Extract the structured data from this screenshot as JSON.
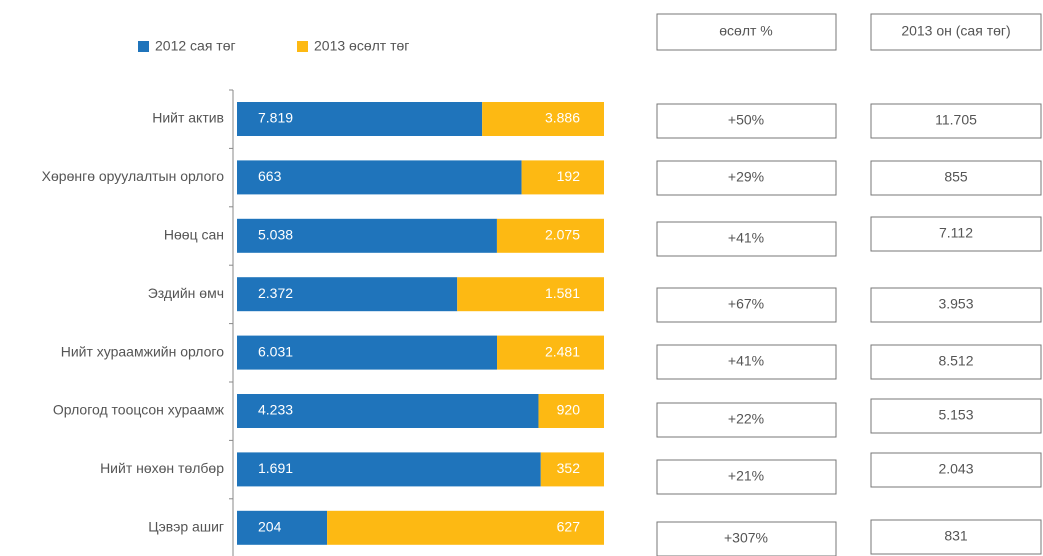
{
  "chart_data": {
    "type": "bar",
    "stacked": "percent",
    "orientation": "horizontal",
    "categories": [
      "Нийт актив",
      "Хөрөнгө оруулалтын орлого",
      "Нөөц сан",
      "Эздийн өмч",
      "Нийт хураамжийн орлого",
      "Орлогод тооцсон хураамж",
      "Нийт нөхөн төлбөр",
      "Цэвэр ашиг"
    ],
    "series": [
      {
        "name": "2012 сая төг",
        "color": "#1f74bb",
        "values": [
          7819,
          663,
          5038,
          2372,
          6031,
          4233,
          1691,
          204
        ],
        "value_labels": [
          "7.819",
          "663",
          "5.038",
          "2.372",
          "6.031",
          "4.233",
          "1.691",
          "204"
        ]
      },
      {
        "name": "2013 өсөлт төг",
        "color": "#fdb913",
        "values": [
          3886,
          192,
          2075,
          1581,
          2481,
          920,
          352,
          627
        ],
        "value_labels": [
          "3.886",
          "192",
          "2.075",
          "1.581",
          "2.481",
          "920",
          "352",
          "627"
        ]
      }
    ],
    "legend": "top-left",
    "growth_header": "өсөлт %",
    "growth": [
      "+50%",
      "+29%",
      "+41%",
      "+67%",
      "+41%",
      "+22%",
      "+21%",
      "+307%"
    ],
    "total_header": "2013 он  (сая төг)",
    "totals": [
      "11.705",
      "855",
      "7.112",
      "3.953",
      "8.512",
      "5.153",
      "2.043",
      "831"
    ]
  }
}
